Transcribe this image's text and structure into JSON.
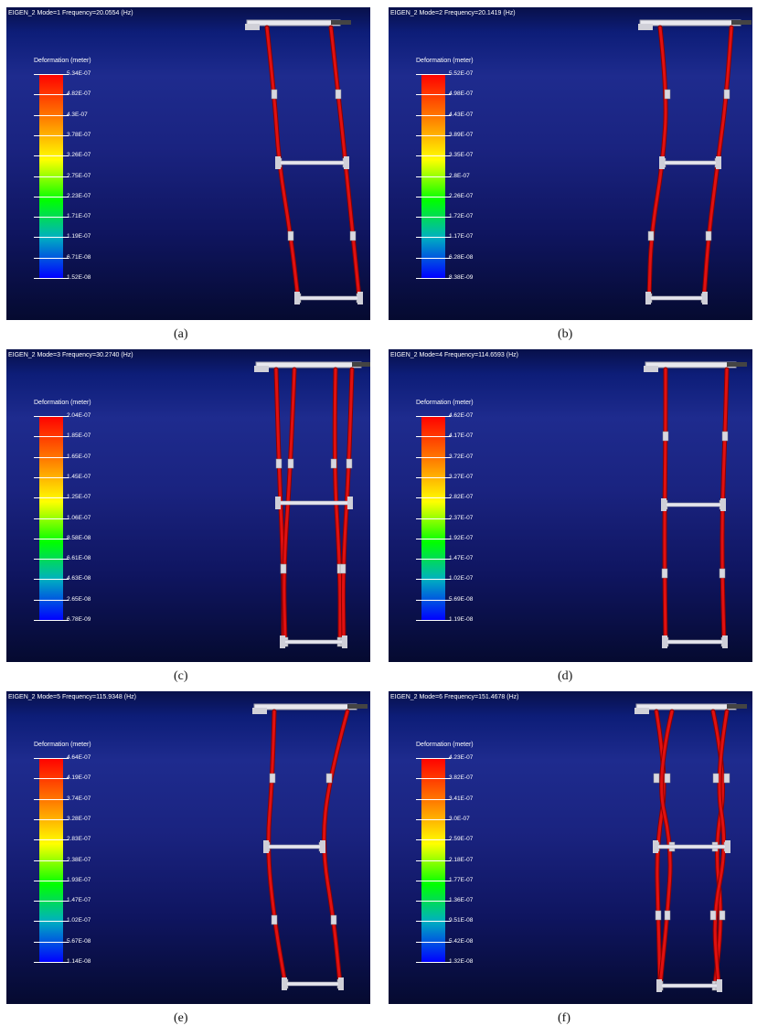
{
  "legend_title": "Deformation (meter)",
  "panels": [
    {
      "title": "EIGEN_2  Mode=1  Frequency=20.0554 (Hz)",
      "ticks": [
        "5.34E-07",
        "4.82E-07",
        "4.3E-07",
        "3.78E-07",
        "3.26E-07",
        "2.75E-07",
        "2.23E-07",
        "1.71E-07",
        "1.19E-07",
        "6.71E-08",
        "1.52E-08"
      ],
      "caption": "(a)"
    },
    {
      "title": "EIGEN_2  Mode=2  Frequency=20.1419 (Hz)",
      "ticks": [
        "5.52E-07",
        "4.98E-07",
        "4.43E-07",
        "3.89E-07",
        "3.35E-07",
        "2.8E-07",
        "2.26E-07",
        "1.72E-07",
        "1.17E-07",
        "6.28E-08",
        "8.38E-09"
      ],
      "caption": "(b)"
    },
    {
      "title": "EIGEN_2  Mode=3  Frequency=30.2740 (Hz)",
      "ticks": [
        "2.04E-07",
        "1.85E-07",
        "1.65E-07",
        "1.45E-07",
        "1.25E-07",
        "1.06E-07",
        "8.58E-08",
        "6.61E-08",
        "4.63E-08",
        "2.65E-08",
        "6.78E-09"
      ],
      "caption": "(c)"
    },
    {
      "title": "EIGEN_2  Mode=4  Frequency=114.6593 (Hz)",
      "ticks": [
        "4.62E-07",
        "4.17E-07",
        "3.72E-07",
        "3.27E-07",
        "2.82E-07",
        "2.37E-07",
        "1.92E-07",
        "1.47E-07",
        "1.02E-07",
        "5.69E-08",
        "1.19E-08"
      ],
      "caption": "(d)"
    },
    {
      "title": "EIGEN_2  Mode=5  Frequency=115.9348 (Hz)",
      "ticks": [
        "4.64E-07",
        "4.19E-07",
        "3.74E-07",
        "3.28E-07",
        "2.83E-07",
        "2.38E-07",
        "1.93E-07",
        "1.47E-07",
        "1.02E-07",
        "5.67E-08",
        "1.14E-08"
      ],
      "caption": "(e)"
    },
    {
      "title": "EIGEN_2  Mode=6  Frequency=151.4678 (Hz)",
      "ticks": [
        "4.23E-07",
        "3.82E-07",
        "3.41E-07",
        "3.0E-07",
        "2.59E-07",
        "2.18E-07",
        "1.77E-07",
        "1.36E-07",
        "9.51E-08",
        "5.42E-08",
        "1.32E-08"
      ],
      "caption": "(f)"
    }
  ]
}
